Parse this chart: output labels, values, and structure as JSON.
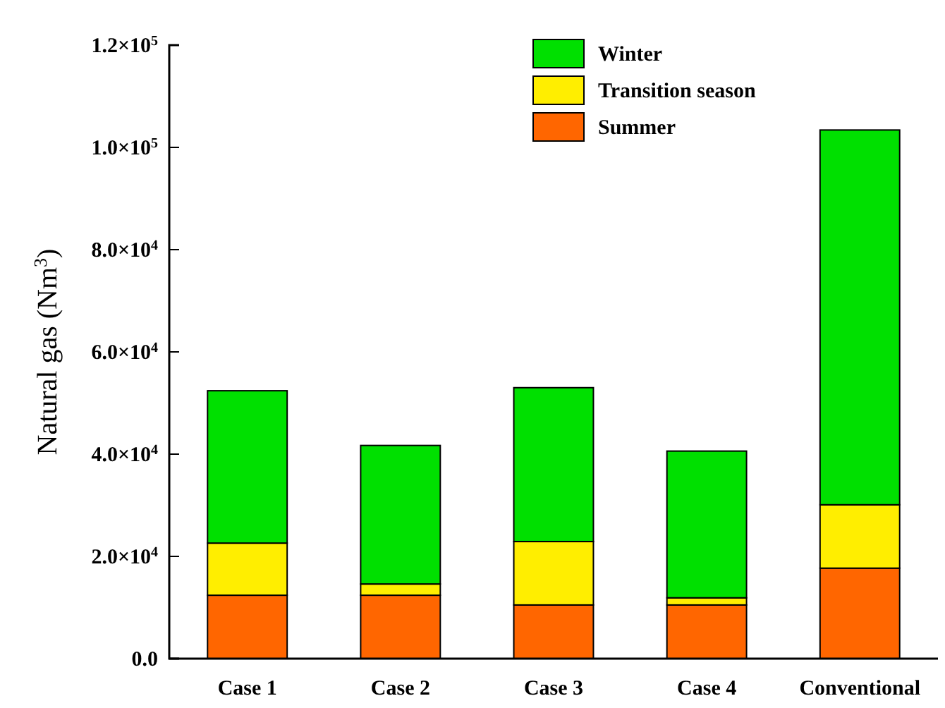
{
  "chart_data": {
    "type": "bar",
    "stacked": true,
    "ylabel": "Natural gas (Nm$^{3}$)",
    "categories": [
      "Case 1",
      "Case 2",
      "Case 3",
      "Case 4",
      "Conventional"
    ],
    "series": [
      {
        "name": "Summer",
        "color": "#ff6600",
        "values": [
          12400,
          12400,
          10500,
          10500,
          17700
        ]
      },
      {
        "name": "Transition season",
        "color": "#ffee00",
        "values": [
          10200,
          2200,
          12400,
          1400,
          12400
        ]
      },
      {
        "name": "Winter",
        "color": "#00e000",
        "values": [
          29800,
          27100,
          30100,
          28700,
          73300
        ]
      }
    ],
    "ylim": [
      0,
      120000
    ],
    "yticks": [
      {
        "value": 0,
        "label": "0.0"
      },
      {
        "value": 20000,
        "label": "2.0×10$^{4}$"
      },
      {
        "value": 40000,
        "label": "4.0×10$^{4}$"
      },
      {
        "value": 60000,
        "label": "6.0×10$^{4}$"
      },
      {
        "value": 80000,
        "label": "8.0×10$^{4}$"
      },
      {
        "value": 100000,
        "label": "1.0×10$^{5}$"
      },
      {
        "value": 120000,
        "label": "1.2×10$^{5}$"
      }
    ],
    "legend": "top right",
    "grid": false
  }
}
